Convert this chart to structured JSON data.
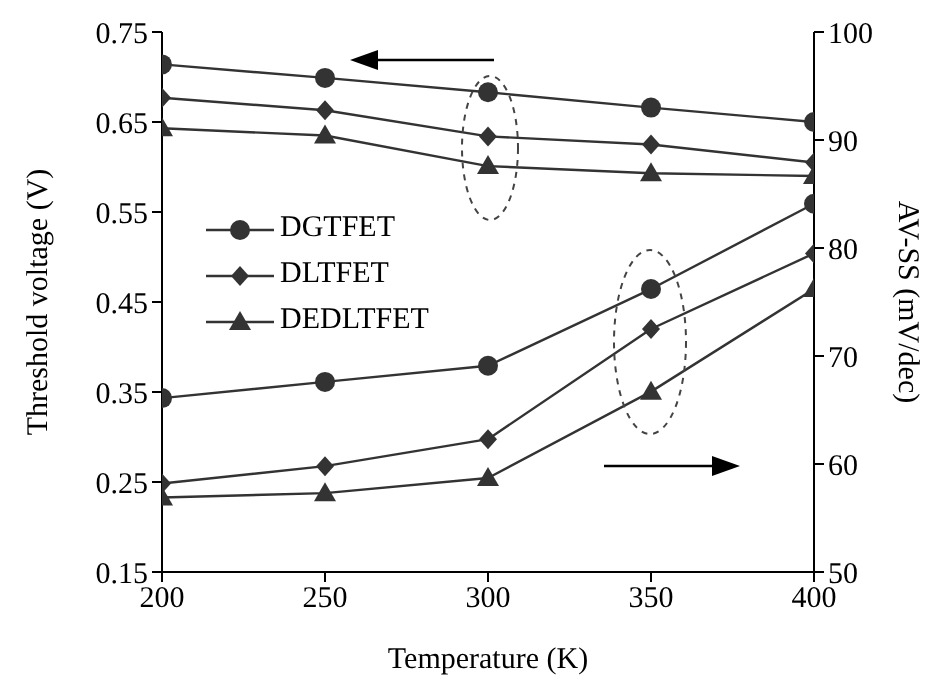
{
  "chart_data": {
    "type": "line",
    "xlabel": "Temperature (K)",
    "ylabel": "Threshold voltage (V)",
    "y2label": "AV-SS (mV/dec)",
    "x": [
      200,
      250,
      300,
      350,
      400
    ],
    "xlim": [
      200,
      400
    ],
    "xticks": [
      200,
      250,
      300,
      350,
      400
    ],
    "ylim": [
      0.15,
      0.75
    ],
    "yticks": [
      0.15,
      0.25,
      0.35,
      0.45,
      0.55,
      0.65,
      0.75
    ],
    "y2lim": [
      50,
      100
    ],
    "y2ticks": [
      50,
      60,
      70,
      80,
      90,
      100
    ],
    "grid": false,
    "legend": "left",
    "line_style": "solid",
    "series": [
      {
        "name": "DGTFET",
        "color": "#333333",
        "marker": "circle",
        "values": [
          0.714,
          0.699,
          0.683,
          0.666,
          0.65
        ]
      },
      {
        "name": "DLTFET",
        "color": "#333333",
        "marker": "diamond",
        "values": [
          0.677,
          0.663,
          0.634,
          0.625,
          0.605
        ]
      },
      {
        "name": "DEDLTFET",
        "color": "#333333",
        "marker": "triangle",
        "values": [
          0.643,
          0.635,
          0.601,
          0.593,
          0.59
        ]
      },
      {
        "color": "#333333",
        "marker": "circle",
        "axis": "y2",
        "values": [
          66.1,
          67.6,
          69.1,
          76.2,
          84.1
        ]
      },
      {
        "color": "#333333",
        "marker": "diamond",
        "axis": "y2",
        "values": [
          58.2,
          59.8,
          62.3,
          72.5,
          79.5
        ]
      },
      {
        "color": "#333333",
        "marker": "triangle",
        "axis": "y2",
        "values": [
          56.9,
          57.3,
          58.7,
          66.7,
          76.2
        ]
      }
    ]
  }
}
